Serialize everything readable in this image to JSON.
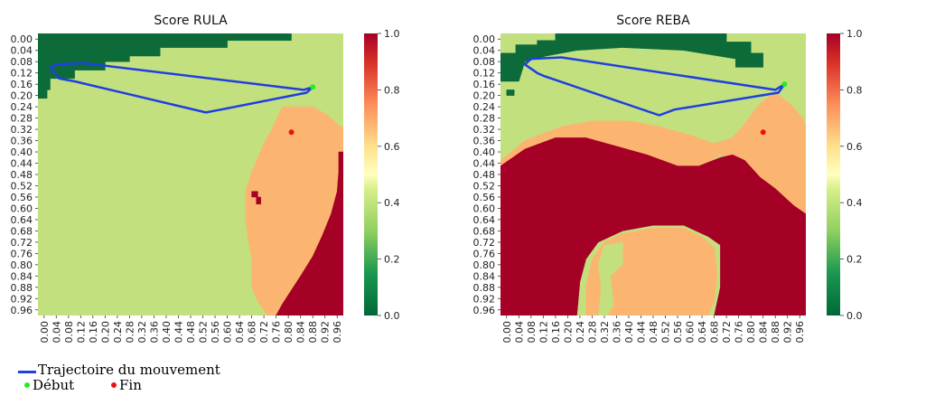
{
  "chart_data": [
    {
      "type": "heatmap",
      "title": "Score RULA",
      "xlabel": "",
      "ylabel": "",
      "x_ticks": [
        "0.00",
        "0.04",
        "0.08",
        "0.12",
        "0.16",
        "0.20",
        "0.24",
        "0.28",
        "0.32",
        "0.36",
        "0.40",
        "0.44",
        "0.48",
        "0.52",
        "0.56",
        "0.60",
        "0.64",
        "0.68",
        "0.72",
        "0.76",
        "0.80",
        "0.84",
        "0.88",
        "0.92",
        "0.96"
      ],
      "y_ticks": [
        "0.00",
        "0.04",
        "0.08",
        "0.12",
        "0.16",
        "0.20",
        "0.24",
        "0.28",
        "0.32",
        "0.36",
        "0.40",
        "0.44",
        "0.48",
        "0.52",
        "0.56",
        "0.60",
        "0.64",
        "0.68",
        "0.72",
        "0.76",
        "0.80",
        "0.84",
        "0.88",
        "0.92",
        "0.96"
      ],
      "colorbar": {
        "ticks": [
          "0.0",
          "0.2",
          "0.4",
          "0.6",
          "0.8",
          "1.0"
        ],
        "range": [
          0,
          1
        ]
      },
      "score_levels": [
        0.0,
        0.33,
        0.67,
        1.0
      ],
      "level_colors": [
        "#0d6b3a",
        "#c2e07e",
        "#fcb571",
        "#a50026"
      ],
      "regions": [
        {
          "score": 0.0,
          "polygon": [
            [
              0,
              0
            ],
            [
              0.83,
              0
            ],
            [
              0.83,
              0.025
            ],
            [
              0.62,
              0.025
            ],
            [
              0.62,
              0.05
            ],
            [
              0.5,
              0.05
            ],
            [
              0.4,
              0.05
            ],
            [
              0.4,
              0.08
            ],
            [
              0.3,
              0.08
            ],
            [
              0.3,
              0.1
            ],
            [
              0.22,
              0.1
            ],
            [
              0.22,
              0.13
            ],
            [
              0.12,
              0.13
            ],
            [
              0.12,
              0.16
            ],
            [
              0.04,
              0.16
            ],
            [
              0.04,
              0.2
            ],
            [
              0,
              0.2
            ]
          ]
        },
        {
          "score": 0.0,
          "polygon": [
            [
              0,
              0.2
            ],
            [
              0.03,
              0.2
            ],
            [
              0.03,
              0.23
            ],
            [
              0,
              0.23
            ]
          ]
        },
        {
          "score": 0.67,
          "polygon": [
            [
              0.8,
              0.26
            ],
            [
              0.9,
              0.26
            ],
            [
              0.95,
              0.29
            ],
            [
              0.99,
              0.33
            ],
            [
              1,
              0.33
            ],
            [
              1,
              1
            ],
            [
              0.75,
              1
            ],
            [
              0.72,
              0.95
            ],
            [
              0.7,
              0.9
            ],
            [
              0.7,
              0.8
            ],
            [
              0.69,
              0.74
            ],
            [
              0.68,
              0.66
            ],
            [
              0.68,
              0.56
            ],
            [
              0.7,
              0.49
            ],
            [
              0.72,
              0.44
            ],
            [
              0.74,
              0.39
            ],
            [
              0.77,
              0.33
            ]
          ]
        },
        {
          "score": 1.0,
          "polygon": [
            [
              0.985,
              0.42
            ],
            [
              1,
              0.42
            ],
            [
              1,
              1
            ],
            [
              0.78,
              1
            ],
            [
              0.8,
              0.96
            ],
            [
              0.83,
              0.91
            ],
            [
              0.86,
              0.86
            ],
            [
              0.9,
              0.79
            ],
            [
              0.93,
              0.72
            ],
            [
              0.96,
              0.64
            ],
            [
              0.98,
              0.56
            ],
            [
              0.985,
              0.49
            ]
          ]
        },
        {
          "score": 1.0,
          "polygon": [
            [
              0.7,
              0.56
            ],
            [
              0.72,
              0.56
            ],
            [
              0.72,
              0.58
            ],
            [
              0.7,
              0.58
            ]
          ]
        },
        {
          "score": 1.0,
          "polygon": [
            [
              0.715,
              0.58
            ],
            [
              0.73,
              0.58
            ],
            [
              0.73,
              0.605
            ],
            [
              0.715,
              0.605
            ]
          ]
        }
      ],
      "trajectory": {
        "x": [
          0.9,
          0.88,
          0.6,
          0.55,
          0.12,
          0.07,
          0.04,
          0.06,
          0.15,
          0.87,
          0.9
        ],
        "y": [
          0.19,
          0.21,
          0.27,
          0.28,
          0.17,
          0.16,
          0.12,
          0.11,
          0.105,
          0.2,
          0.19
        ]
      },
      "start": {
        "x": 0.9,
        "y": 0.19
      },
      "end": {
        "x": 0.83,
        "y": 0.35
      }
    },
    {
      "type": "heatmap",
      "title": "Score REBA",
      "xlabel": "",
      "ylabel": "",
      "x_ticks": [
        "0.00",
        "0.04",
        "0.08",
        "0.12",
        "0.16",
        "0.20",
        "0.24",
        "0.28",
        "0.32",
        "0.36",
        "0.40",
        "0.44",
        "0.48",
        "0.52",
        "0.56",
        "0.60",
        "0.64",
        "0.68",
        "0.72",
        "0.76",
        "0.80",
        "0.84",
        "0.88",
        "0.92",
        "0.96"
      ],
      "y_ticks": [
        "0.00",
        "0.04",
        "0.08",
        "0.12",
        "0.16",
        "0.20",
        "0.24",
        "0.28",
        "0.32",
        "0.36",
        "0.40",
        "0.44",
        "0.48",
        "0.52",
        "0.56",
        "0.60",
        "0.64",
        "0.68",
        "0.72",
        "0.76",
        "0.80",
        "0.84",
        "0.88",
        "0.92",
        "0.96"
      ],
      "colorbar": {
        "ticks": [
          "0.0",
          "0.2",
          "0.4",
          "0.6",
          "0.8",
          "1.0"
        ],
        "range": [
          0,
          1
        ]
      },
      "score_levels": [
        0.0,
        0.33,
        0.67,
        1.0
      ],
      "level_colors": [
        "#0d6b3a",
        "#c2e07e",
        "#fcb571",
        "#a50026"
      ],
      "regions": [
        {
          "score": 0.0,
          "polygon": [
            [
              0.18,
              0
            ],
            [
              0.74,
              0
            ],
            [
              0.74,
              0.03
            ],
            [
              0.82,
              0.03
            ],
            [
              0.82,
              0.07
            ],
            [
              0.86,
              0.07
            ],
            [
              0.86,
              0.12
            ],
            [
              0.77,
              0.12
            ],
            [
              0.77,
              0.09
            ],
            [
              0.6,
              0.06
            ],
            [
              0.4,
              0.05
            ],
            [
              0.25,
              0.06
            ],
            [
              0.15,
              0.08
            ],
            [
              0.08,
              0.1
            ],
            [
              0.06,
              0.17
            ],
            [
              0,
              0.17
            ],
            [
              0,
              0.07
            ],
            [
              0.05,
              0.07
            ],
            [
              0.05,
              0.04
            ],
            [
              0.12,
              0.04
            ],
            [
              0.12,
              0.025
            ],
            [
              0.18,
              0.025
            ]
          ]
        },
        {
          "score": 0.0,
          "polygon": [
            [
              0.02,
              0.2
            ],
            [
              0.045,
              0.2
            ],
            [
              0.045,
              0.22
            ],
            [
              0.02,
              0.22
            ]
          ]
        },
        {
          "score": 0.67,
          "polygon": [
            [
              0,
              0.45
            ],
            [
              0.08,
              0.38
            ],
            [
              0.2,
              0.33
            ],
            [
              0.3,
              0.31
            ],
            [
              0.42,
              0.31
            ],
            [
              0.52,
              0.33
            ],
            [
              0.62,
              0.36
            ],
            [
              0.7,
              0.39
            ],
            [
              0.76,
              0.37
            ],
            [
              0.8,
              0.32
            ],
            [
              0.84,
              0.26
            ],
            [
              0.87,
              0.23
            ],
            [
              0.9,
              0.21
            ],
            [
              0.95,
              0.25
            ],
            [
              0.99,
              0.3
            ],
            [
              1,
              0.33
            ],
            [
              1,
              0.64
            ],
            [
              0.96,
              0.62
            ],
            [
              0.9,
              0.55
            ],
            [
              0.85,
              0.52
            ],
            [
              0.8,
              0.45
            ],
            [
              0.76,
              0.44
            ],
            [
              0.72,
              0.43
            ],
            [
              0.65,
              0.48
            ],
            [
              0.58,
              0.52
            ],
            [
              0.5,
              0.48
            ],
            [
              0.4,
              0.44
            ],
            [
              0.3,
              0.43
            ],
            [
              0.2,
              0.44
            ],
            [
              0.1,
              0.48
            ],
            [
              0,
              0.5
            ]
          ]
        },
        {
          "score": 1.0,
          "polygon": [
            [
              0,
              0.47
            ],
            [
              0.08,
              0.41
            ],
            [
              0.18,
              0.37
            ],
            [
              0.28,
              0.37
            ],
            [
              0.38,
              0.4
            ],
            [
              0.48,
              0.43
            ],
            [
              0.58,
              0.47
            ],
            [
              0.65,
              0.47
            ],
            [
              0.72,
              0.44
            ],
            [
              0.76,
              0.43
            ],
            [
              0.8,
              0.45
            ],
            [
              0.85,
              0.51
            ],
            [
              0.9,
              0.55
            ],
            [
              0.96,
              0.61
            ],
            [
              1,
              0.64
            ],
            [
              1,
              1
            ],
            [
              0.77,
              1
            ],
            [
              0.7,
              1
            ],
            [
              0.72,
              0.9
            ],
            [
              0.72,
              0.75
            ],
            [
              0.68,
              0.72
            ],
            [
              0.6,
              0.68
            ],
            [
              0.5,
              0.68
            ],
            [
              0.4,
              0.7
            ],
            [
              0.32,
              0.74
            ],
            [
              0.28,
              0.8
            ],
            [
              0.26,
              0.88
            ],
            [
              0.25,
              1
            ],
            [
              0,
              1
            ]
          ]
        },
        {
          "score": 0.67,
          "polygon": [
            [
              0.28,
              1
            ],
            [
              0.28,
              0.9
            ],
            [
              0.3,
              0.8
            ],
            [
              0.34,
              0.74
            ],
            [
              0.4,
              0.71
            ],
            [
              0.5,
              0.69
            ],
            [
              0.6,
              0.69
            ],
            [
              0.66,
              0.72
            ],
            [
              0.7,
              0.76
            ],
            [
              0.71,
              0.85
            ],
            [
              0.7,
              0.95
            ],
            [
              0.68,
              1
            ]
          ]
        },
        {
          "score": 1.0,
          "polygon": [
            [
              0.72,
              1
            ],
            [
              0.72,
              0.9
            ],
            [
              0.74,
              0.82
            ],
            [
              0.73,
              0.72
            ],
            [
              0.76,
              0.7
            ],
            [
              0.78,
              0.72
            ],
            [
              0.78,
              1
            ]
          ]
        },
        {
          "score": 0.33,
          "polygon": [
            [
              0.34,
              0.75
            ],
            [
              0.4,
              0.74
            ],
            [
              0.4,
              0.82
            ],
            [
              0.36,
              0.86
            ],
            [
              0.37,
              0.96
            ],
            [
              0.35,
              1
            ],
            [
              0.32,
              1
            ],
            [
              0.33,
              0.9
            ],
            [
              0.32,
              0.82
            ]
          ]
        }
      ],
      "trajectory": {
        "x": [
          0.93,
          0.91,
          0.57,
          0.52,
          0.14,
          0.12,
          0.08,
          0.1,
          0.2,
          0.9,
          0.93
        ],
        "y": [
          0.18,
          0.21,
          0.27,
          0.29,
          0.15,
          0.14,
          0.11,
          0.09,
          0.085,
          0.2,
          0.18
        ]
      },
      "start": {
        "x": 0.93,
        "y": 0.18
      },
      "end": {
        "x": 0.86,
        "y": 0.35
      }
    }
  ],
  "legend": {
    "trajectory_label": "Trajectoire du mouvement",
    "start_label": "Début",
    "end_label": "Fin",
    "trajectory_color": "#1f3fe0",
    "start_color": "#22ee22",
    "end_color": "#ee1111"
  }
}
